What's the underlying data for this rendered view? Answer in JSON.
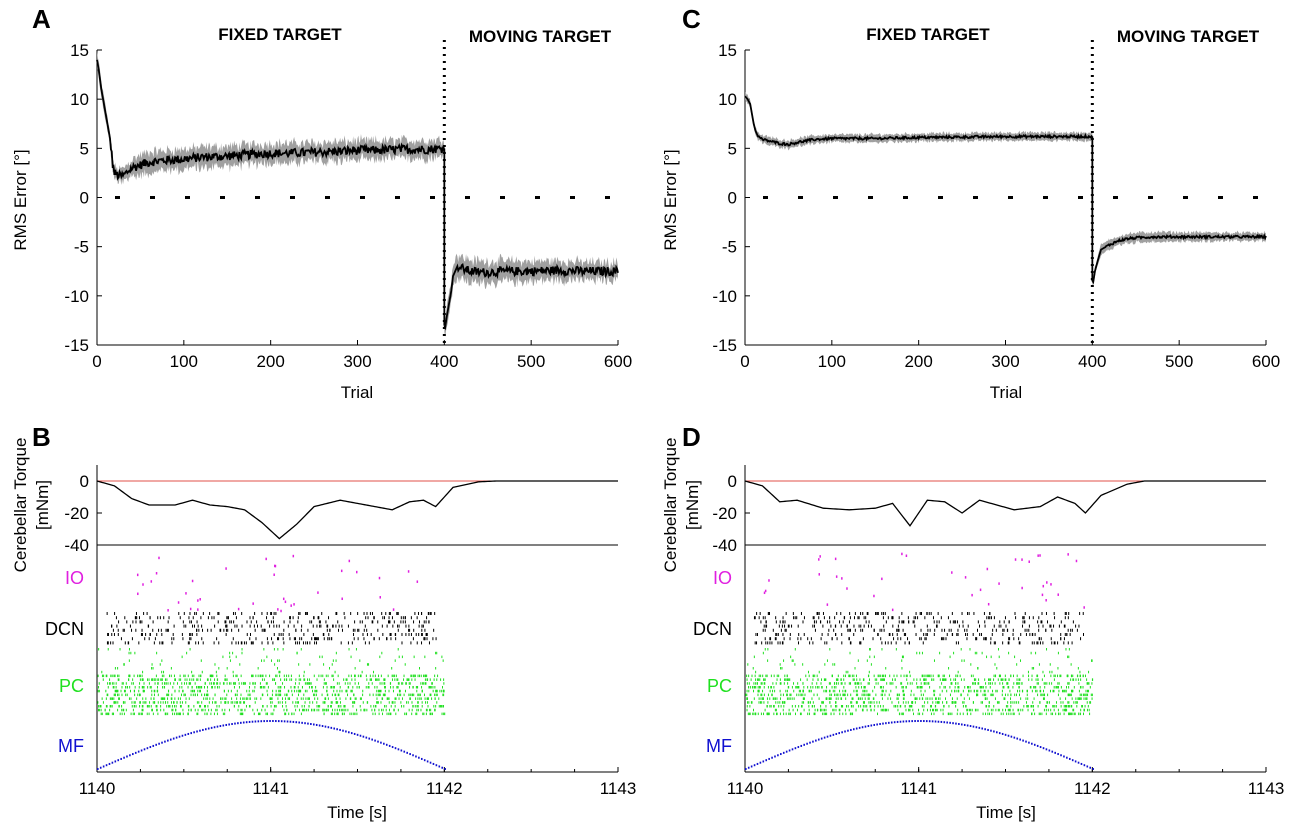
{
  "panels": [
    {
      "letter": "A",
      "type": "rms",
      "phase_labels": [
        "FIXED TARGET",
        "MOVING TARGET"
      ],
      "ylabel": "RMS Error [°]",
      "xlabel": "Trial",
      "xlim": [
        0,
        600
      ],
      "ylim": [
        -15,
        15
      ],
      "xticks": [
        0,
        100,
        200,
        300,
        400,
        500,
        600
      ],
      "yticks": [
        15,
        10,
        5,
        0,
        -5,
        -10,
        -15
      ],
      "switch_trial": 400
    },
    {
      "letter": "C",
      "type": "rms",
      "phase_labels": [
        "FIXED TARGET",
        "MOVING TARGET"
      ],
      "ylabel": "RMS Error [°]",
      "xlabel": "Trial",
      "xlim": [
        0,
        600
      ],
      "ylim": [
        -15,
        15
      ],
      "xticks": [
        0,
        100,
        200,
        300,
        400,
        500,
        600
      ],
      "yticks": [
        15,
        10,
        5,
        0,
        -5,
        -10,
        -15
      ],
      "switch_trial": 400
    },
    {
      "letter": "B",
      "type": "raster",
      "ylabel_lines": [
        "Cerebellar Torque",
        "[mNm]"
      ],
      "xlabel": "Time [s]",
      "xlim": [
        1140,
        1143
      ],
      "xticks": [
        1140,
        1141,
        1142,
        1143
      ],
      "torque_ylim": [
        -40,
        10
      ],
      "torque_yticks": [
        0,
        -20,
        -40
      ],
      "cell_labels": [
        "IO",
        "DCN",
        "PC",
        "MF"
      ]
    },
    {
      "letter": "D",
      "type": "raster",
      "ylabel_lines": [
        "Cerebellar Torque",
        "[mNm]"
      ],
      "xlabel": "Time [s]",
      "xlim": [
        1140,
        1143
      ],
      "xticks": [
        1140,
        1141,
        1142,
        1143
      ],
      "torque_ylim": [
        -40,
        10
      ],
      "torque_yticks": [
        0,
        -20,
        -40
      ],
      "cell_labels": [
        "IO",
        "DCN",
        "PC",
        "MF"
      ]
    }
  ],
  "colors": {
    "mean_line": "#000000",
    "band": "#a0a0a0",
    "reference_line": "#e0504a",
    "io": "#e020e0",
    "dcn": "#000000",
    "pc": "#20e020",
    "mf": "#1010d0"
  },
  "chart_data": [
    {
      "panel": "A",
      "type": "line",
      "x_label": "Trial",
      "y_label": "RMS Error [°]",
      "xlim": [
        0,
        600
      ],
      "ylim": [
        -15,
        15
      ],
      "series": [
        {
          "name": "",
          "x": [
            0,
            2,
            5,
            8,
            10,
            12,
            15,
            18,
            20,
            25,
            30,
            40,
            50,
            60,
            80,
            100,
            120,
            150,
            180,
            200,
            220,
            250,
            280,
            300,
            320,
            350,
            380,
            400
          ],
          "y": [
            14,
            13,
            11,
            9.5,
            8.5,
            7.5,
            6,
            3.5,
            2.5,
            2.2,
            2.2,
            3,
            3.3,
            3.6,
            3.8,
            3.9,
            4.1,
            4.2,
            4.4,
            4.5,
            4.5,
            4.6,
            4.7,
            4.8,
            4.8,
            4.9,
            4.9,
            5
          ]
        },
        {
          "name": "",
          "x": [
            400,
            401,
            403,
            405,
            408,
            410,
            415,
            420,
            430,
            440,
            450,
            470,
            500,
            530,
            560,
            600
          ],
          "y": [
            -13,
            -13.2,
            -12,
            -11,
            -9.5,
            -8,
            -7,
            -7.2,
            -7.5,
            -7.6,
            -7.6,
            -7.5,
            -7.5,
            -7.4,
            -7.5,
            -7.5
          ]
        }
      ],
      "band_halfwidth": {
        "x": [
          0,
          20,
          50,
          100,
          200,
          400,
          410,
          500,
          600
        ],
        "y": [
          0.8,
          0.6,
          1.0,
          1.0,
          1.0,
          0.9,
          1.2,
          1.0,
          0.9
        ]
      }
    },
    {
      "panel": "C",
      "type": "line",
      "x_label": "Trial",
      "y_label": "RMS Error [°]",
      "xlim": [
        0,
        600
      ],
      "ylim": [
        -15,
        15
      ],
      "series": [
        {
          "name": "",
          "x": [
            0,
            3,
            6,
            8,
            10,
            12,
            15,
            20,
            30,
            40,
            50,
            60,
            80,
            100,
            150,
            200,
            300,
            400
          ],
          "y": [
            10.3,
            10,
            9.5,
            8.5,
            7.5,
            6.8,
            6.2,
            5.9,
            5.7,
            5.5,
            5.4,
            5.6,
            5.9,
            6.0,
            6.0,
            6.1,
            6.2,
            6.2
          ]
        },
        {
          "name": "",
          "x": [
            400,
            401,
            403,
            406,
            410,
            420,
            430,
            440,
            450,
            470,
            500,
            550,
            600
          ],
          "y": [
            -8.5,
            -8.6,
            -7.5,
            -6.5,
            -5.3,
            -4.8,
            -4.4,
            -4.2,
            -4.1,
            -4.0,
            -4.0,
            -4.0,
            -4.0
          ]
        }
      ],
      "band_halfwidth": {
        "x": [
          0,
          100,
          400,
          410,
          600
        ],
        "y": [
          0.4,
          0.4,
          0.4,
          0.5,
          0.4
        ]
      }
    },
    {
      "panel": "B",
      "type": "line",
      "x_label": "Time [s]",
      "y_label": "Cerebellar Torque [mNm]",
      "xlim": [
        1140,
        1143
      ],
      "ylim": [
        -40,
        10
      ],
      "series": [
        {
          "name": "",
          "x": [
            1140,
            1140.1,
            1140.2,
            1140.3,
            1140.45,
            1140.55,
            1140.65,
            1140.75,
            1140.85,
            1140.95,
            1141.05,
            1141.15,
            1141.25,
            1141.4,
            1141.55,
            1141.7,
            1141.8,
            1141.88,
            1141.95,
            1142.05,
            1142.2,
            1142.3,
            1143
          ],
          "y": [
            0,
            -3,
            -11,
            -15,
            -15,
            -12,
            -15,
            -16,
            -18,
            -26,
            -36,
            -27,
            -16,
            -12,
            -15,
            -18,
            -13,
            -12,
            -16,
            -4,
            -0.5,
            0,
            0
          ]
        }
      ],
      "reference_y": 0
    },
    {
      "panel": "D",
      "type": "line",
      "x_label": "Time [s]",
      "y_label": "Cerebellar Torque [mNm]",
      "xlim": [
        1140,
        1143
      ],
      "ylim": [
        -40,
        10
      ],
      "series": [
        {
          "name": "",
          "x": [
            1140,
            1140.1,
            1140.2,
            1140.3,
            1140.45,
            1140.6,
            1140.75,
            1140.85,
            1140.95,
            1141.05,
            1141.15,
            1141.25,
            1141.35,
            1141.45,
            1141.55,
            1141.7,
            1141.8,
            1141.9,
            1141.96,
            1142.05,
            1142.2,
            1142.3,
            1143
          ],
          "y": [
            0,
            -3,
            -13,
            -12,
            -17,
            -18,
            -17,
            -14,
            -28,
            -12,
            -13,
            -20,
            -12,
            -15,
            -18,
            -16,
            -10,
            -14,
            -20,
            -9,
            -2,
            0,
            0
          ]
        }
      ],
      "reference_y": 0
    }
  ]
}
